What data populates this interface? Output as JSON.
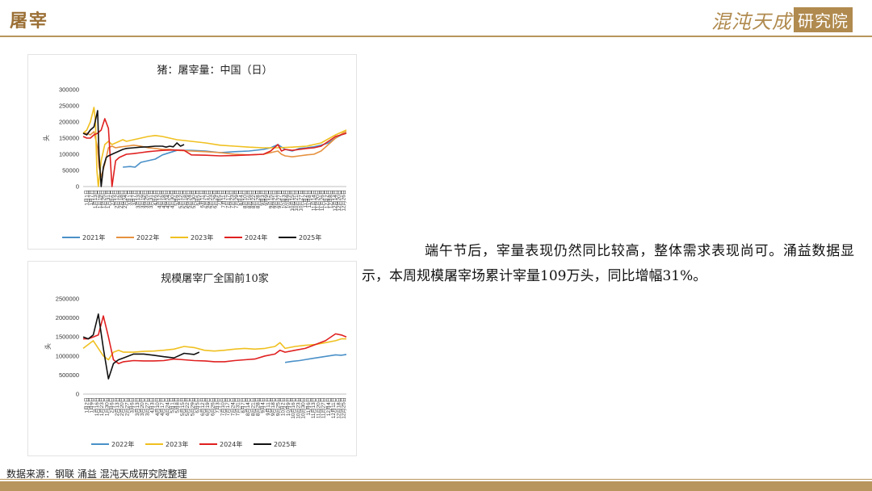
{
  "page": {
    "title": "屠宰",
    "logo_main": "混沌天成",
    "logo_box": "研究院",
    "commentary": "端午节后，宰量表现仍然同比较高，整体需求表现尚可。涌益数据显示，本周规模屠宰场累计宰量109万头，同比增幅31%。",
    "source": "数据来源：钢联 涌益 混沌天成研究院整理"
  },
  "chart_data": [
    {
      "type": "line",
      "title": "猪：屠宰量：中国（日）",
      "ylabel": "头",
      "ylim": [
        0,
        300000
      ],
      "yticks": [
        0,
        50000,
        100000,
        150000,
        200000,
        250000,
        300000
      ],
      "xlim": [
        0,
        365
      ],
      "x_tick_labels": [
        "1月1日",
        "1月7日",
        "1月13日",
        "1月19日",
        "1月25日",
        "1月31日",
        "2月6日",
        "2月12日",
        "2月18日",
        "2月24日",
        "3月1日",
        "3月7日",
        "3月13日",
        "3月19日",
        "3月25日",
        "3月31日",
        "4月6日",
        "4月12日",
        "4月18日",
        "4月24日",
        "4月30日",
        "5月6日",
        "5月12日",
        "5月18日",
        "5月24日",
        "5月30日",
        "6月5日",
        "6月11日",
        "6月17日",
        "6月23日",
        "6月29日",
        "7月5日",
        "7月11日",
        "7月17日",
        "7月23日",
        "7月29日",
        "8月4日",
        "8月10日",
        "8月16日",
        "8月22日",
        "8月28日",
        "9月3日",
        "9月9日",
        "9月15日",
        "9月21日",
        "9月27日",
        "10月3日",
        "10月9日",
        "10月15日",
        "10月21日",
        "10月27日",
        "11月2日",
        "11月8日",
        "11月14日",
        "11月20日",
        "11月26日",
        "12月2日",
        "12月8日",
        "12月14日",
        "12月20日",
        "12月26日"
      ],
      "legend": "bottom",
      "grid": false,
      "series": [
        {
          "name": "2021年",
          "color": "#4a90c8",
          "x": [
            55,
            65,
            72,
            80,
            90,
            100,
            110,
            130,
            150,
            170,
            190,
            210,
            230,
            250,
            260,
            270,
            280,
            290,
            300,
            310,
            320,
            330,
            340,
            350,
            358,
            365
          ],
          "y": [
            60000,
            62000,
            60000,
            75000,
            80000,
            85000,
            98000,
            112000,
            112000,
            110000,
            105000,
            108000,
            110000,
            115000,
            120000,
            130000,
            115000,
            110000,
            118000,
            120000,
            123000,
            128000,
            135000,
            150000,
            160000,
            165000
          ]
        },
        {
          "name": "2022年",
          "color": "#e6913f",
          "x": [
            0,
            5,
            10,
            15,
            20,
            22,
            25,
            30,
            35,
            40,
            45,
            50,
            60,
            70,
            80,
            90,
            100,
            110,
            120,
            130,
            150,
            170,
            190,
            210,
            230,
            250,
            260,
            270,
            275,
            280,
            290,
            300,
            310,
            320,
            330,
            340,
            350,
            360,
            365
          ],
          "y": [
            165000,
            165000,
            160000,
            170000,
            120000,
            60000,
            30000,
            70000,
            120000,
            125000,
            120000,
            122000,
            125000,
            128000,
            125000,
            120000,
            118000,
            115000,
            115000,
            112000,
            110000,
            108000,
            105000,
            100000,
            98000,
            100000,
            105000,
            110000,
            100000,
            95000,
            92000,
            95000,
            98000,
            100000,
            110000,
            130000,
            150000,
            165000,
            170000
          ]
        },
        {
          "name": "2023年",
          "color": "#f0c020",
          "x": [
            0,
            5,
            10,
            15,
            17,
            19,
            21,
            25,
            30,
            35,
            40,
            45,
            50,
            55,
            60,
            70,
            80,
            90,
            100,
            110,
            120,
            130,
            150,
            170,
            190,
            210,
            230,
            250,
            270,
            290,
            310,
            330,
            350,
            365
          ],
          "y": [
            165000,
            175000,
            200000,
            245000,
            200000,
            50000,
            0,
            80000,
            130000,
            140000,
            130000,
            135000,
            140000,
            145000,
            140000,
            145000,
            150000,
            155000,
            158000,
            155000,
            150000,
            145000,
            140000,
            135000,
            128000,
            125000,
            122000,
            120000,
            120000,
            122000,
            125000,
            135000,
            160000,
            175000
          ]
        },
        {
          "name": "2024年",
          "color": "#e02020",
          "x": [
            0,
            5,
            10,
            15,
            20,
            25,
            30,
            35,
            40,
            45,
            50,
            55,
            60,
            70,
            80,
            90,
            100,
            110,
            120,
            130,
            140,
            150,
            170,
            190,
            210,
            230,
            250,
            260,
            270,
            275,
            280,
            290,
            300,
            310,
            320,
            330,
            340,
            350,
            365
          ],
          "y": [
            155000,
            150000,
            150000,
            160000,
            165000,
            175000,
            210000,
            180000,
            0,
            80000,
            90000,
            95000,
            100000,
            102000,
            105000,
            108000,
            110000,
            112000,
            113000,
            113000,
            112000,
            98000,
            97000,
            95000,
            96000,
            98000,
            100000,
            110000,
            130000,
            110000,
            115000,
            112000,
            115000,
            118000,
            120000,
            125000,
            140000,
            155000,
            165000
          ]
        },
        {
          "name": "2025年",
          "color": "#111111",
          "x": [
            0,
            5,
            10,
            15,
            20,
            22,
            25,
            28,
            32,
            35,
            40,
            45,
            50,
            55,
            60,
            70,
            80,
            90,
            100,
            110,
            115,
            120,
            125,
            130,
            135,
            140
          ],
          "y": [
            165000,
            160000,
            175000,
            185000,
            235000,
            100000,
            0,
            60000,
            90000,
            95000,
            100000,
            105000,
            110000,
            115000,
            118000,
            120000,
            122000,
            123000,
            125000,
            125000,
            122000,
            125000,
            123000,
            135000,
            125000,
            130000
          ]
        }
      ]
    },
    {
      "type": "line",
      "title": "规模屠宰厂全国前10家",
      "ylabel": "头",
      "ylim": [
        0,
        2500000
      ],
      "yticks": [
        0,
        500000,
        1000000,
        1500000,
        2000000,
        2500000
      ],
      "xlim": [
        0,
        365
      ],
      "x_tick_labels": [
        "1月2日",
        "1月9日",
        "1月16日",
        "1月23日",
        "1月30日",
        "2月6日",
        "2月13日",
        "2月20日",
        "2月27日",
        "3月6日",
        "3月13日",
        "3月20日",
        "3月27日",
        "4月3日",
        "4月10日",
        "4月17日",
        "4月24日",
        "5月1日",
        "5月8日",
        "5月15日",
        "5月22日",
        "5月29日",
        "6月5日",
        "6月12日",
        "6月19日",
        "6月26日",
        "7月3日",
        "7月10日",
        "7月17日",
        "7月24日",
        "7月31日",
        "8月7日",
        "8月14日",
        "8月21日",
        "8月28日",
        "9月4日",
        "9月11日",
        "9月18日",
        "9月25日",
        "10月2日",
        "10月9日",
        "10月16日",
        "10月23日",
        "10月30日",
        "11月6日",
        "11月13日",
        "11月20日",
        "11月27日",
        "12月4日",
        "12月11日",
        "12月18日",
        "12月25日"
      ],
      "legend": "bottom",
      "grid": false,
      "series": [
        {
          "name": "2022年",
          "color": "#4a90c8",
          "x": [
            280,
            290,
            300,
            310,
            320,
            330,
            340,
            350,
            358,
            365
          ],
          "y": [
            830000,
            860000,
            880000,
            910000,
            940000,
            970000,
            1000000,
            1030000,
            1020000,
            1040000
          ]
        },
        {
          "name": "2023年",
          "color": "#f0c020",
          "x": [
            0,
            7,
            14,
            21,
            28,
            35,
            42,
            49,
            56,
            70,
            84,
            98,
            112,
            126,
            140,
            154,
            168,
            182,
            196,
            210,
            224,
            238,
            252,
            266,
            273,
            280,
            294,
            308,
            322,
            336,
            350,
            358,
            365
          ],
          "y": [
            1200000,
            1300000,
            1400000,
            1200000,
            1000000,
            900000,
            1100000,
            1150000,
            1100000,
            1100000,
            1120000,
            1130000,
            1150000,
            1180000,
            1250000,
            1220000,
            1150000,
            1130000,
            1150000,
            1180000,
            1200000,
            1180000,
            1200000,
            1250000,
            1350000,
            1200000,
            1250000,
            1280000,
            1300000,
            1350000,
            1400000,
            1450000,
            1450000
          ]
        },
        {
          "name": "2024年",
          "color": "#e02020",
          "x": [
            0,
            7,
            14,
            21,
            28,
            35,
            42,
            49,
            56,
            70,
            84,
            98,
            112,
            126,
            140,
            154,
            168,
            182,
            196,
            210,
            224,
            238,
            252,
            266,
            273,
            280,
            294,
            308,
            322,
            336,
            350,
            358,
            365
          ],
          "y": [
            1450000,
            1450000,
            1500000,
            1550000,
            2050000,
            1500000,
            900000,
            800000,
            850000,
            880000,
            870000,
            870000,
            880000,
            920000,
            900000,
            880000,
            870000,
            850000,
            850000,
            880000,
            900000,
            920000,
            1000000,
            1050000,
            1150000,
            1100000,
            1150000,
            1200000,
            1300000,
            1400000,
            1580000,
            1550000,
            1500000
          ]
        },
        {
          "name": "2025年",
          "color": "#111111",
          "x": [
            0,
            7,
            14,
            21,
            28,
            35,
            42,
            49,
            56,
            70,
            84,
            98,
            112,
            126,
            140,
            154,
            161
          ],
          "y": [
            1500000,
            1450000,
            1550000,
            2100000,
            1200000,
            400000,
            800000,
            900000,
            950000,
            1050000,
            1050000,
            1020000,
            980000,
            950000,
            1070000,
            1040000,
            1100000
          ]
        }
      ]
    }
  ]
}
